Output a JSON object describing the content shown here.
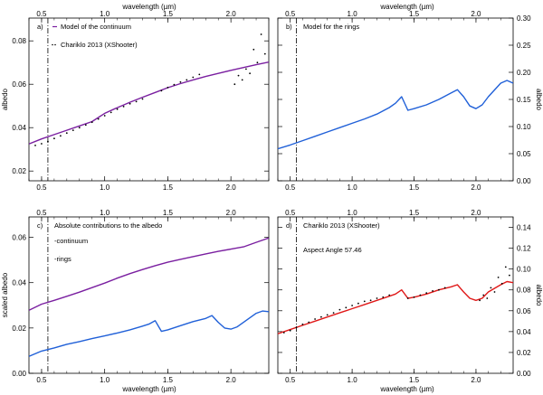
{
  "figure": {
    "top_title": "wavelength (µm)",
    "bottom_title": "wavelength (µm)"
  },
  "colors": {
    "continuum": "#7a1fa0",
    "rings": "#2060d8",
    "model": "#e01818",
    "data": "#000000",
    "frame": "#000000"
  },
  "chart_data": [
    {
      "type": "line",
      "panel": "a)",
      "xlim": [
        0.4,
        2.3
      ],
      "ylim": [
        0.0155,
        0.0905
      ],
      "xticks": [
        0.5,
        1.0,
        1.5,
        2.0
      ],
      "xtick_labels": [
        "0.5",
        "1.0",
        "1.5",
        "2.0"
      ],
      "yticks": [
        0.02,
        0.04,
        0.06,
        0.08
      ],
      "ytick_labels": [
        "0.02",
        "0.04",
        "0.06",
        "0.08"
      ],
      "ylabel": "albedo",
      "ylabel_side": "left",
      "top_xlabel": "wavelength (µm)",
      "bottom_xlabel": "",
      "reference_line_x": 0.55,
      "legend": [
        {
          "label": "Model of the continuum",
          "marker": "line",
          "color": "#7a1fa0"
        },
        {
          "label": "Chariklo 2013 (XShooter)",
          "marker": "dots",
          "color": "#000000"
        }
      ],
      "series": [
        {
          "name": "Model of the continuum",
          "style": "line",
          "color": "#7a1fa0",
          "x": [
            0.4,
            0.5,
            0.6,
            0.7,
            0.8,
            0.9,
            1.0,
            1.1,
            1.2,
            1.3,
            1.4,
            1.5,
            1.6,
            1.7,
            1.8,
            1.9,
            2.0,
            2.1,
            2.2,
            2.3
          ],
          "y": [
            0.0325,
            0.0348,
            0.0368,
            0.0388,
            0.0408,
            0.0428,
            0.0466,
            0.0492,
            0.0517,
            0.054,
            0.0562,
            0.0584,
            0.0603,
            0.062,
            0.0636,
            0.065,
            0.0664,
            0.0677,
            0.069,
            0.0702
          ]
        },
        {
          "name": "Chariklo 2013 (XShooter)",
          "style": "dots",
          "color": "#000000",
          "x": [
            0.45,
            0.5,
            0.55,
            0.6,
            0.65,
            0.7,
            0.75,
            0.8,
            0.85,
            0.9,
            0.95,
            1.0,
            1.05,
            1.1,
            1.15,
            1.2,
            1.25,
            1.3,
            1.45,
            1.5,
            1.55,
            1.6,
            1.65,
            1.7,
            1.75,
            2.03,
            2.06,
            2.09,
            2.12,
            2.15,
            2.18,
            2.21,
            2.24,
            2.27
          ],
          "y": [
            0.0318,
            0.0326,
            0.0336,
            0.035,
            0.0362,
            0.0375,
            0.0388,
            0.04,
            0.0412,
            0.0425,
            0.044,
            0.0455,
            0.047,
            0.0485,
            0.0497,
            0.051,
            0.052,
            0.0532,
            0.057,
            0.0585,
            0.0598,
            0.061,
            0.062,
            0.0632,
            0.0645,
            0.06,
            0.064,
            0.062,
            0.067,
            0.065,
            0.076,
            0.07,
            0.083,
            0.074
          ]
        }
      ]
    },
    {
      "type": "line",
      "panel": "b)",
      "xlim": [
        0.4,
        2.3
      ],
      "ylim": [
        0.0,
        0.3
      ],
      "xticks": [
        0.5,
        1.0,
        1.5,
        2.0
      ],
      "xtick_labels": [
        "0.5",
        "1.0",
        "1.5",
        "2.0"
      ],
      "yticks": [
        0.0,
        0.05,
        0.1,
        0.15,
        0.2,
        0.25,
        0.3
      ],
      "ytick_labels": [
        "0.00",
        "0.05",
        "0.10",
        "0.15",
        "0.20",
        "0.25",
        "0.30"
      ],
      "ylabel": "albedo",
      "ylabel_side": "right",
      "top_xlabel": "wavelength (µm)",
      "bottom_xlabel": "",
      "reference_line_x": 0.55,
      "legend": [
        {
          "label": "Model for the rings",
          "marker": "none",
          "color": "#2060d8"
        }
      ],
      "series": [
        {
          "name": "Model for the rings",
          "style": "line",
          "color": "#2060d8",
          "x": [
            0.4,
            0.5,
            0.6,
            0.7,
            0.8,
            0.9,
            1.0,
            1.1,
            1.2,
            1.3,
            1.35,
            1.4,
            1.45,
            1.5,
            1.6,
            1.7,
            1.8,
            1.85,
            1.9,
            1.95,
            2.0,
            2.05,
            2.1,
            2.2,
            2.25,
            2.3
          ],
          "y": [
            0.059,
            0.066,
            0.074,
            0.082,
            0.09,
            0.098,
            0.106,
            0.114,
            0.123,
            0.135,
            0.143,
            0.155,
            0.13,
            0.133,
            0.14,
            0.15,
            0.162,
            0.168,
            0.155,
            0.138,
            0.133,
            0.14,
            0.155,
            0.18,
            0.185,
            0.18
          ]
        }
      ]
    },
    {
      "type": "line",
      "panel": "c)",
      "xlim": [
        0.4,
        2.3
      ],
      "ylim": [
        0.0,
        0.069
      ],
      "xticks": [
        0.5,
        1.0,
        1.5,
        2.0
      ],
      "xtick_labels": [
        "0.5",
        "1.0",
        "1.5",
        "2.0"
      ],
      "yticks": [
        0.0,
        0.02,
        0.04,
        0.06
      ],
      "ytick_labels": [
        "0.00",
        "0.02",
        "0.04",
        "0.06"
      ],
      "ylabel": "scaled albedo",
      "ylabel_side": "left",
      "top_xlabel": "",
      "bottom_xlabel": "wavelength (µm)",
      "reference_line_x": 0.55,
      "title_text": "Absolute contributions to the albedo",
      "legend": [
        {
          "label": "-continuum",
          "marker": "none",
          "color": "#7a1fa0"
        },
        {
          "label": "-rings",
          "marker": "none",
          "color": "#2060d8"
        }
      ],
      "series": [
        {
          "name": "continuum",
          "style": "line",
          "color": "#7a1fa0",
          "x": [
            0.4,
            0.5,
            0.6,
            0.7,
            0.8,
            0.9,
            1.0,
            1.1,
            1.2,
            1.3,
            1.4,
            1.5,
            1.6,
            1.7,
            1.8,
            1.9,
            2.0,
            2.1,
            2.2,
            2.3
          ],
          "y": [
            0.0278,
            0.0305,
            0.0322,
            0.034,
            0.0358,
            0.0378,
            0.0398,
            0.042,
            0.044,
            0.0458,
            0.0475,
            0.049,
            0.0503,
            0.0515,
            0.0527,
            0.0538,
            0.0548,
            0.0558,
            0.0578,
            0.0597
          ]
        },
        {
          "name": "rings",
          "style": "line",
          "color": "#2060d8",
          "x": [
            0.4,
            0.5,
            0.6,
            0.7,
            0.8,
            0.9,
            1.0,
            1.1,
            1.2,
            1.3,
            1.35,
            1.4,
            1.45,
            1.5,
            1.6,
            1.7,
            1.8,
            1.85,
            1.9,
            1.95,
            2.0,
            2.05,
            2.1,
            2.2,
            2.25,
            2.3
          ],
          "y": [
            0.0075,
            0.0098,
            0.0112,
            0.0128,
            0.014,
            0.0153,
            0.0165,
            0.0178,
            0.0192,
            0.0208,
            0.0217,
            0.0232,
            0.0185,
            0.0192,
            0.021,
            0.0228,
            0.0242,
            0.0255,
            0.0225,
            0.02,
            0.0195,
            0.0205,
            0.0225,
            0.0265,
            0.0275,
            0.0272
          ]
        }
      ]
    },
    {
      "type": "line",
      "panel": "d)",
      "xlim": [
        0.4,
        2.3
      ],
      "ylim": [
        0.0,
        0.15
      ],
      "xticks": [
        0.5,
        1.0,
        1.5,
        2.0
      ],
      "xtick_labels": [
        "0.5",
        "1.0",
        "1.5",
        "2.0"
      ],
      "yticks": [
        0.0,
        0.02,
        0.04,
        0.06,
        0.08,
        0.1,
        0.12,
        0.14
      ],
      "ytick_labels": [
        "0.00",
        "0.02",
        "0.04",
        "0.06",
        "0.08",
        "0.10",
        "0.12",
        "0.14"
      ],
      "ylabel": "albedo",
      "ylabel_side": "right",
      "top_xlabel": "",
      "bottom_xlabel": "wavelength (µm)",
      "reference_line_x": 0.55,
      "title_text": "Chariklo 2013 (XShooter)",
      "annotation": "Aspect Angle 57.46",
      "legend": [],
      "series": [
        {
          "name": "Model",
          "style": "line",
          "color": "#e01818",
          "x": [
            0.4,
            0.5,
            0.6,
            0.7,
            0.8,
            0.9,
            1.0,
            1.1,
            1.2,
            1.3,
            1.35,
            1.4,
            1.45,
            1.5,
            1.6,
            1.7,
            1.8,
            1.85,
            1.9,
            1.95,
            2.0,
            2.05,
            2.1,
            2.2,
            2.25,
            2.3
          ],
          "y": [
            0.038,
            0.042,
            0.046,
            0.05,
            0.054,
            0.058,
            0.062,
            0.066,
            0.07,
            0.074,
            0.076,
            0.08,
            0.072,
            0.073,
            0.076,
            0.08,
            0.083,
            0.085,
            0.078,
            0.072,
            0.07,
            0.072,
            0.078,
            0.085,
            0.088,
            0.087
          ]
        },
        {
          "name": "Chariklo 2013 (XShooter)",
          "style": "dots",
          "color": "#000000",
          "x": [
            0.45,
            0.5,
            0.55,
            0.6,
            0.65,
            0.7,
            0.75,
            0.8,
            0.85,
            0.9,
            0.95,
            1.0,
            1.05,
            1.1,
            1.15,
            1.2,
            1.25,
            1.3,
            1.45,
            1.5,
            1.55,
            1.6,
            1.65,
            1.7,
            1.75,
            2.03,
            2.06,
            2.09,
            2.12,
            2.15,
            2.18,
            2.21,
            2.24,
            2.27
          ],
          "y": [
            0.039,
            0.041,
            0.044,
            0.047,
            0.049,
            0.052,
            0.054,
            0.056,
            0.058,
            0.061,
            0.063,
            0.065,
            0.067,
            0.069,
            0.07,
            0.072,
            0.073,
            0.075,
            0.072,
            0.073,
            0.075,
            0.077,
            0.079,
            0.08,
            0.082,
            0.07,
            0.075,
            0.072,
            0.082,
            0.078,
            0.092,
            0.086,
            0.102,
            0.094
          ]
        }
      ]
    }
  ]
}
